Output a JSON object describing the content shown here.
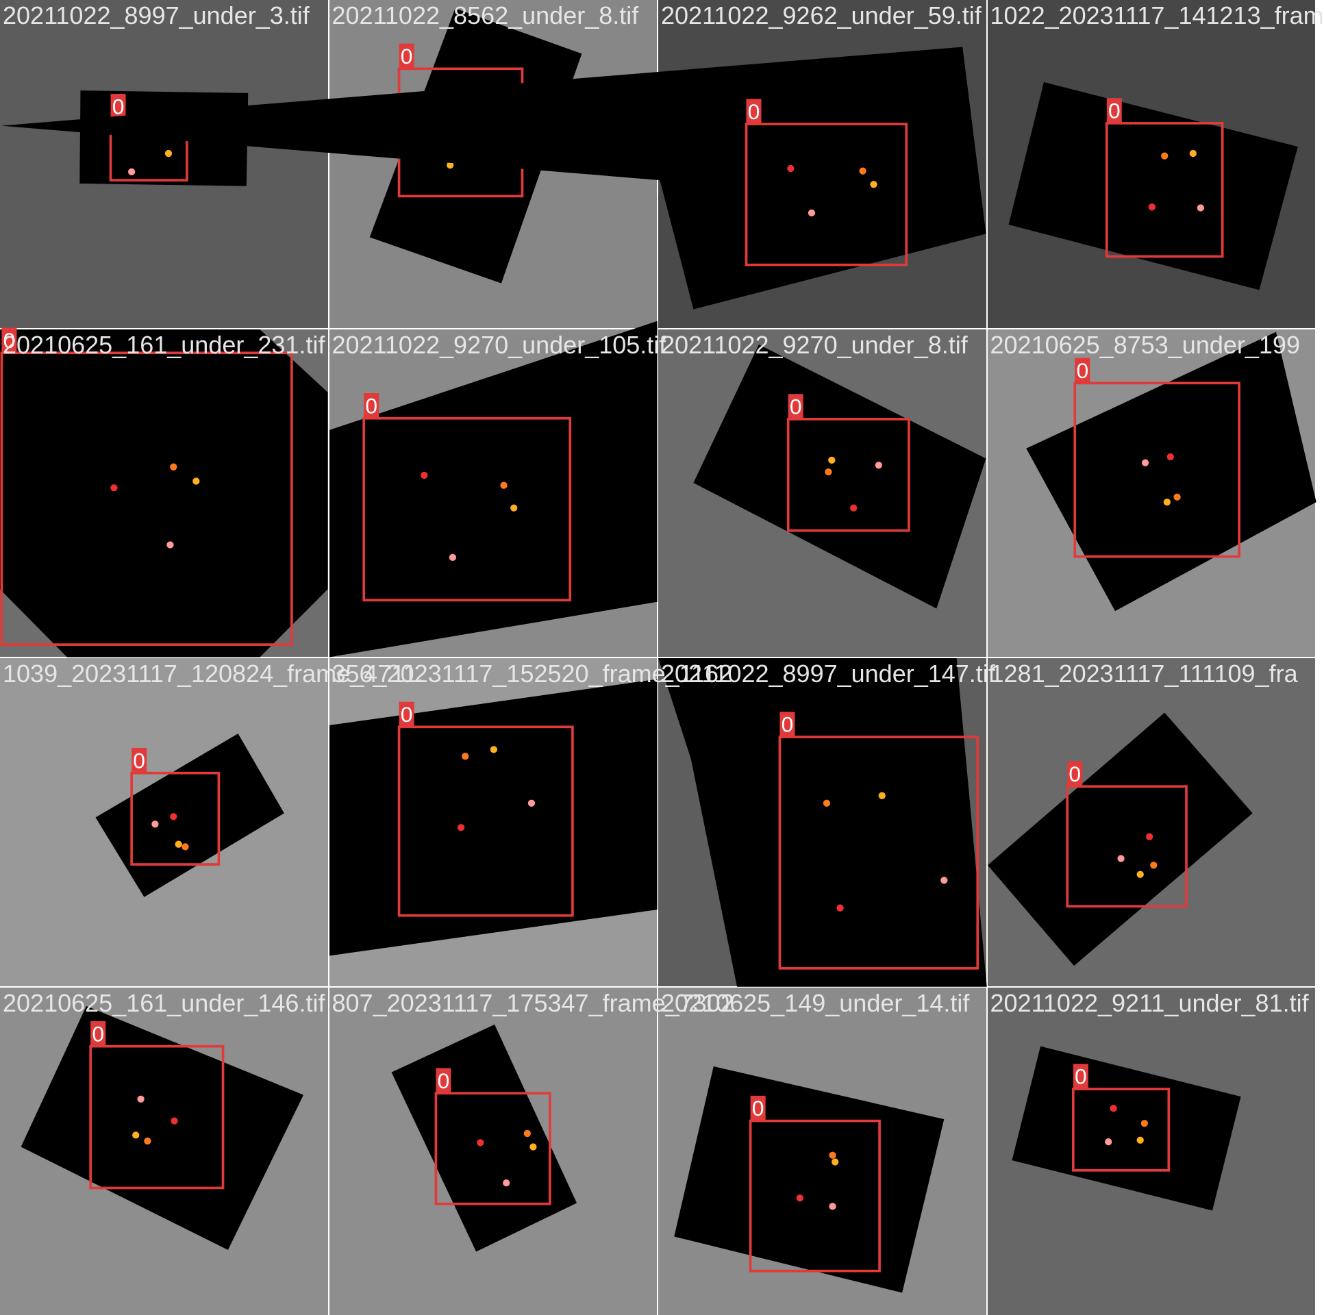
{
  "colors": {
    "box": "#e13a3a",
    "label_bg": "#e13a3a",
    "label_fg": "#ffffff",
    "filename": "#e6e6e6",
    "keypoints": [
      "#f03030",
      "#ff7a1a",
      "#ffb020",
      "#ff9a9a"
    ]
  },
  "tiles": [
    {
      "filename": "20211022_8997_under_3.tif",
      "background": "#5c5c5c",
      "detection": {
        "class_label": "0"
      }
    },
    {
      "filename": "20211022_8562_under_8.tif",
      "background": "#878787",
      "detection": {
        "class_label": "0"
      }
    },
    {
      "filename": "20211022_9262_under_59.tif",
      "background": "#4a4a4a",
      "detection": {
        "class_label": "0"
      }
    },
    {
      "filename": "1022_20231117_141213_fram",
      "background": "#474747",
      "detection": {
        "class_label": "0"
      }
    },
    {
      "filename": "20210625_161_under_231.tif",
      "background": "#6e6e6e",
      "detection": {
        "class_label": "0"
      }
    },
    {
      "filename": "20211022_9270_under_105.tif",
      "background": "#8a8a8a",
      "detection": {
        "class_label": "0"
      }
    },
    {
      "filename": "20211022_9270_under_8.tif",
      "background": "#6b6b6b",
      "detection": {
        "class_label": "0"
      }
    },
    {
      "filename": "20210625_8753_under_199",
      "background": "#909090",
      "detection": {
        "class_label": "0"
      }
    },
    {
      "filename": "1039_20231117_120824_frame_4711.",
      "background": "#999999",
      "detection": {
        "class_label": "0"
      }
    },
    {
      "filename": "356_20231117_152520_frame_1162",
      "background": "#9a9a9a",
      "detection": {
        "class_label": "0"
      }
    },
    {
      "filename": "20211022_8997_under_147.tif",
      "background": "#5e5e5e",
      "detection": {
        "class_label": "0"
      }
    },
    {
      "filename": "1281_20231117_111109_fra",
      "background": "#6a6a6a",
      "detection": {
        "class_label": "0"
      }
    },
    {
      "filename": "20210625_161_under_146.tif",
      "background": "#8e8e8e",
      "detection": {
        "class_label": "0"
      }
    },
    {
      "filename": "807_20231117_175347_frame_7302",
      "background": "#8e8e8e",
      "detection": {
        "class_label": "0"
      }
    },
    {
      "filename": "20210625_149_under_14.tif",
      "background": "#8b8b8b",
      "detection": {
        "class_label": "0"
      }
    },
    {
      "filename": "20211022_9211_under_81.tif",
      "background": "#676767",
      "detection": {
        "class_label": "0"
      }
    }
  ]
}
